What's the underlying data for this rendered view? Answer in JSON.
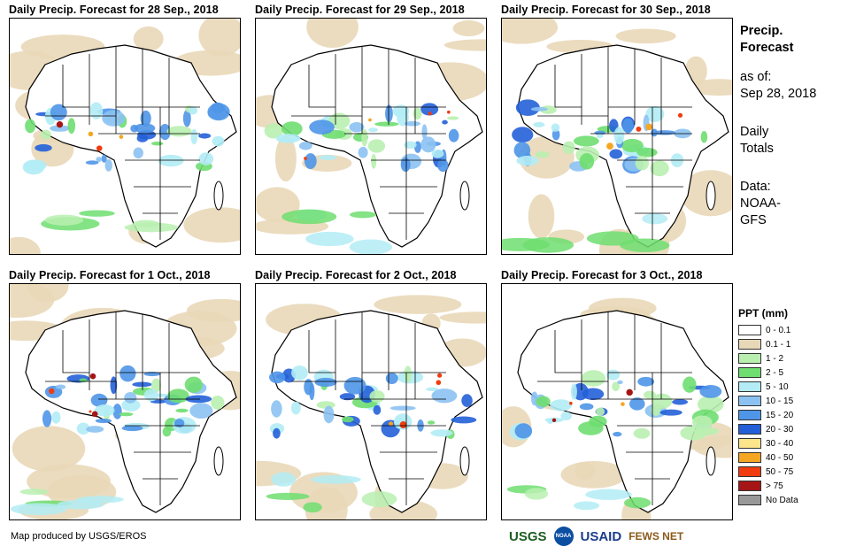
{
  "panels": [
    {
      "title": "Daily Precip. Forecast for 28 Sep., 2018"
    },
    {
      "title": "Daily Precip. Forecast for 29 Sep., 2018"
    },
    {
      "title": "Daily Precip. Forecast for 30 Sep., 2018"
    },
    {
      "title": "Daily Precip. Forecast for 1 Oct., 2018"
    },
    {
      "title": "Daily Precip. Forecast for 2 Oct., 2018"
    },
    {
      "title": "Daily Precip. Forecast for 3 Oct., 2018"
    }
  ],
  "side": {
    "title_line1": "Precip.",
    "title_line2": "Forecast",
    "asof_label": "as of:",
    "asof_date": "Sep 28, 2018",
    "totals_line1": "Daily",
    "totals_line2": "Totals",
    "data_label": "Data:",
    "data_line1": "NOAA-",
    "data_line2": "GFS"
  },
  "legend": {
    "title": "PPT (mm)",
    "items": [
      {
        "label": "0 - 0.1",
        "color": "#ffffff"
      },
      {
        "label": "0.1 - 1",
        "color": "#e9d8b8"
      },
      {
        "label": "1 - 2",
        "color": "#b9f0b0"
      },
      {
        "label": "2 - 5",
        "color": "#6ede70"
      },
      {
        "label": "5 - 10",
        "color": "#b3ecf5"
      },
      {
        "label": "10 - 15",
        "color": "#8cc2f2"
      },
      {
        "label": "15 - 20",
        "color": "#4f95e8"
      },
      {
        "label": "20 - 30",
        "color": "#2360d8"
      },
      {
        "label": "30 - 40",
        "color": "#fde58c"
      },
      {
        "label": "40 - 50",
        "color": "#f5a623"
      },
      {
        "label": "50 - 75",
        "color": "#f03c10"
      },
      {
        "label": "> 75",
        "color": "#a51515"
      },
      {
        "label": "No Data",
        "color": "#999999"
      }
    ]
  },
  "footer": {
    "credit": "Map produced by USGS/EROS",
    "logos": [
      "USGS",
      "NOAA",
      "USAID",
      "FEWS NET"
    ]
  }
}
